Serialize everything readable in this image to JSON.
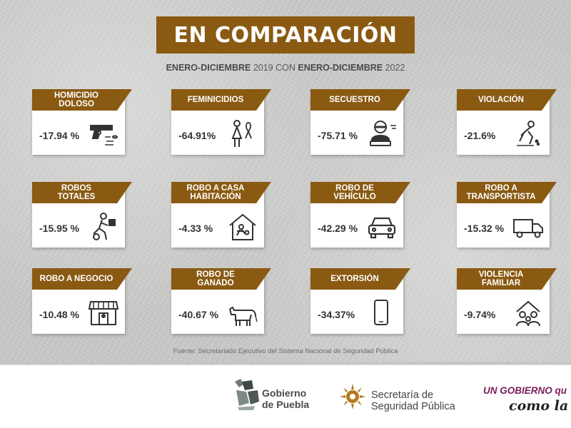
{
  "header": {
    "title": "EN COMPARACIÓN",
    "subtitle_b1": "ENERO-DICIEMBRE",
    "subtitle_t1": " 2019 CON ",
    "subtitle_b2": "ENERO-DICIEMBRE",
    "subtitle_t2": " 2022"
  },
  "colors": {
    "brand_brown": "#8a5a12",
    "slogan_purple": "#7a1b5a"
  },
  "cards": [
    {
      "label": "HOMICIDIO\nDOLOSO",
      "value": "-17.94 %",
      "icon": "gun-icon"
    },
    {
      "label": "FEMINICIDIOS",
      "value": "-64.91%",
      "icon": "woman-ribbon-icon"
    },
    {
      "label": "SECUESTRO",
      "value": "-75.71 %",
      "icon": "hostage-icon"
    },
    {
      "label": "VIOLACIÓN",
      "value": "-21.6%",
      "icon": "victim-icon"
    },
    {
      "label": "ROBOS\nTOTALES",
      "value": "-15.95 %",
      "icon": "thief-running-icon"
    },
    {
      "label": "ROBO A CASA\nHABITACIÓN",
      "value": "-4.33 %",
      "icon": "house-burglary-icon"
    },
    {
      "label": "ROBO DE\nVEHÍCULO",
      "value": "-42.29 %",
      "icon": "car-icon"
    },
    {
      "label": "ROBO A\nTRANSPORTISTA",
      "value": "-15.32 %",
      "icon": "truck-icon"
    },
    {
      "label": "ROBO A NEGOCIO",
      "value": "-10.48 %",
      "icon": "store-icon"
    },
    {
      "label": "ROBO DE\nGANADO",
      "value": "-40.67 %",
      "icon": "cow-icon"
    },
    {
      "label": "EXTORSIÓN",
      "value": "-34.37%",
      "icon": "phone-icon"
    },
    {
      "label": "VIOLENCIA\nFAMILIAR",
      "value": "-9.74%",
      "icon": "family-house-icon"
    }
  ],
  "source": "Fuente: Secretariado Ejecutivo del Sistema Nacional de Seguridad Pública",
  "footer": {
    "puebla_logo_text": "Gobierno\nde Puebla",
    "ssp_logo_text": "Secretaría de\nSeguridad Pública",
    "slogan_line1": "UN GOBIERNO qu",
    "slogan_line2": "como la"
  }
}
